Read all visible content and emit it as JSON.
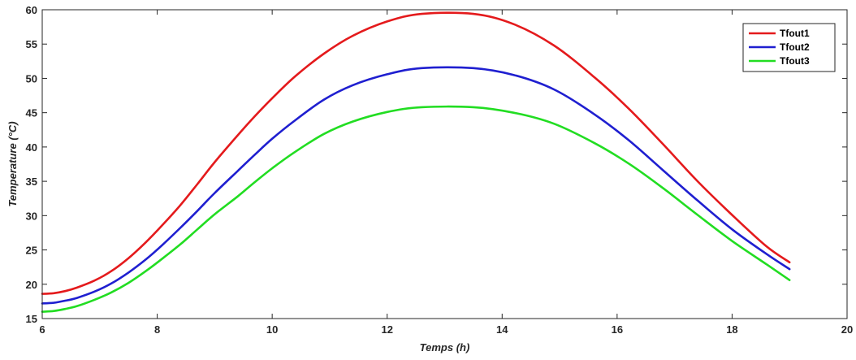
{
  "chart_data": {
    "type": "line",
    "title": "",
    "xlabel": "Temps (h)",
    "ylabel": "Temperature (°C)",
    "xlim": [
      6,
      20
    ],
    "ylim": [
      15,
      60
    ],
    "x_ticks": [
      6,
      8,
      10,
      12,
      14,
      16,
      18,
      20
    ],
    "y_ticks": [
      15,
      20,
      25,
      30,
      35,
      40,
      45,
      50,
      55,
      60
    ],
    "grid": false,
    "legend_position": "top-right",
    "series": [
      {
        "name": "Tfout1",
        "color": "#e41a1c",
        "x": [
          6.0,
          6.2,
          6.4,
          6.6,
          6.9,
          7.2,
          7.5,
          7.8,
          8.1,
          8.4,
          8.7,
          9.0,
          9.4,
          9.7,
          10.0,
          10.4,
          10.9,
          11.4,
          12.0,
          12.6,
          13.5,
          14.2,
          14.9,
          15.6,
          16.2,
          16.8,
          17.4,
          18.0,
          18.6,
          19.0
        ],
        "y": [
          18.6,
          18.7,
          19.0,
          19.5,
          20.5,
          21.9,
          23.8,
          26.1,
          28.7,
          31.5,
          34.6,
          37.8,
          41.7,
          44.5,
          47.1,
          50.3,
          53.6,
          56.2,
          58.3,
          59.4,
          59.4,
          57.9,
          54.8,
          50.2,
          45.6,
          40.4,
          35.0,
          30.1,
          25.5,
          23.2
        ]
      },
      {
        "name": "Tfout2",
        "color": "#1f1fd0",
        "x": [
          6.0,
          6.2,
          6.4,
          6.6,
          6.9,
          7.2,
          7.5,
          7.8,
          8.1,
          8.4,
          8.7,
          9.0,
          9.4,
          9.7,
          10.0,
          10.4,
          10.9,
          11.4,
          12.0,
          12.6,
          13.5,
          14.2,
          14.9,
          15.6,
          16.2,
          16.8,
          17.4,
          18.0,
          18.6,
          19.0
        ],
        "y": [
          17.2,
          17.3,
          17.6,
          18.0,
          18.9,
          20.1,
          21.7,
          23.6,
          25.8,
          28.2,
          30.7,
          33.3,
          36.5,
          38.9,
          41.2,
          43.9,
          46.9,
          49.0,
          50.6,
          51.5,
          51.5,
          50.5,
          48.4,
          44.8,
          41.0,
          36.6,
          32.2,
          28.0,
          24.4,
          22.2
        ]
      },
      {
        "name": "Tfout3",
        "color": "#22dd22",
        "x": [
          6.0,
          6.2,
          6.4,
          6.6,
          6.9,
          7.2,
          7.5,
          7.8,
          8.1,
          8.4,
          8.7,
          9.0,
          9.4,
          9.7,
          10.0,
          10.4,
          10.9,
          11.4,
          12.0,
          12.6,
          13.5,
          14.2,
          14.9,
          15.6,
          16.2,
          16.8,
          17.4,
          18.0,
          18.6,
          19.0
        ],
        "y": [
          16.0,
          16.1,
          16.4,
          16.8,
          17.7,
          18.8,
          20.2,
          21.9,
          23.8,
          25.8,
          28.0,
          30.2,
          32.8,
          34.9,
          36.9,
          39.3,
          41.9,
          43.7,
          45.1,
          45.8,
          45.8,
          45.0,
          43.4,
          40.6,
          37.6,
          34.0,
          30.1,
          26.3,
          22.9,
          20.6
        ]
      }
    ]
  }
}
